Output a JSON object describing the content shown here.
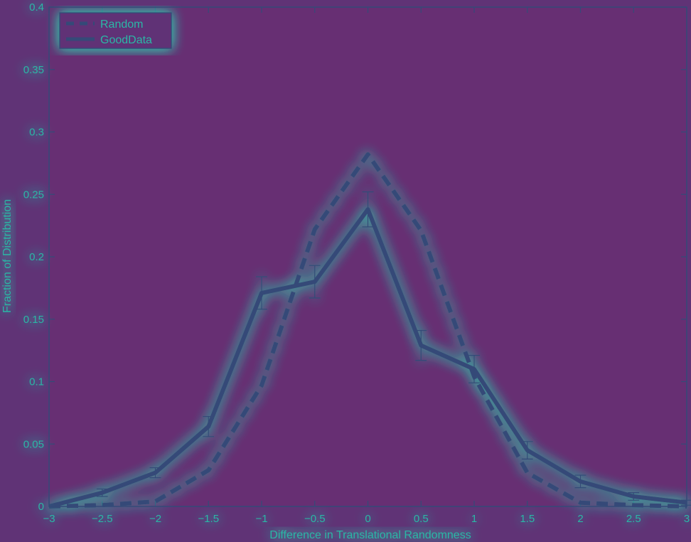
{
  "colors": {
    "background": "#603376",
    "plot_background": "#672f73",
    "line": "#344a78",
    "text": "#2bb7a6",
    "glow": "#2fd3b0"
  },
  "chart_data": {
    "type": "line",
    "xlabel": "Difference in Translational Randomness",
    "ylabel": "Fraction of Distribution",
    "xlim": [
      -3,
      3
    ],
    "ylim": [
      0,
      0.4
    ],
    "xticks": [
      "-3",
      "-2.5",
      "-2",
      "-1.5",
      "-1",
      "-0.5",
      "0",
      "0.5",
      "1",
      "1.5",
      "2",
      "2.5",
      "3"
    ],
    "yticks": [
      "0",
      "0.05",
      "0.1",
      "0.15",
      "0.2",
      "0.25",
      "0.3",
      "0.35",
      "0.4"
    ],
    "grid": false,
    "legend_position": "top-left",
    "x": [
      -3,
      -2.5,
      -2,
      -1.5,
      -1,
      -0.5,
      0,
      0.5,
      1,
      1.5,
      2,
      2.5,
      3
    ],
    "series": [
      {
        "name": "Random",
        "style": "dashed",
        "values": [
          0.0,
          0.001,
          0.004,
          0.029,
          0.097,
          0.222,
          0.282,
          0.221,
          0.104,
          0.027,
          0.003,
          0.001,
          0.0
        ]
      },
      {
        "name": "GoodData",
        "style": "solid",
        "values": [
          0.0,
          0.011,
          0.027,
          0.064,
          0.171,
          0.18,
          0.238,
          0.129,
          0.11,
          0.045,
          0.02,
          0.008,
          0.003
        ],
        "error": [
          0,
          0.003,
          0.004,
          0.008,
          0.013,
          0.013,
          0.014,
          0.012,
          0.011,
          0.007,
          0.005,
          0.003,
          0.002
        ]
      }
    ]
  }
}
